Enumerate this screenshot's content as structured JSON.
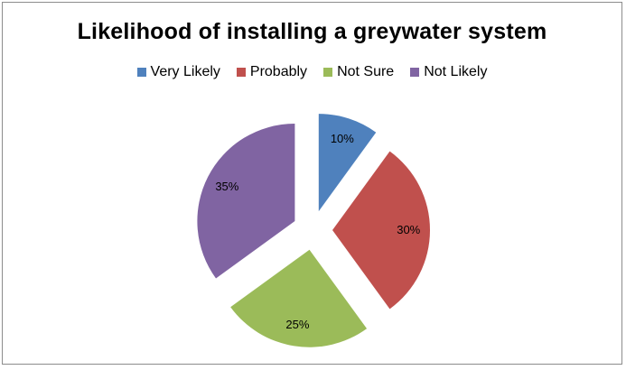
{
  "chart_data": {
    "type": "pie",
    "title": "Likelihood of installing a greywater system",
    "legend_position": "top",
    "categories": [
      "Very Likely",
      "Probably",
      "Not Sure",
      "Not Likely"
    ],
    "values": [
      10,
      30,
      25,
      35
    ],
    "labels": [
      "10%",
      "30%",
      "25%",
      "35%"
    ],
    "colors": [
      "#4f81bd",
      "#c0504d",
      "#9bbb59",
      "#8064a2"
    ],
    "exploded": true
  }
}
